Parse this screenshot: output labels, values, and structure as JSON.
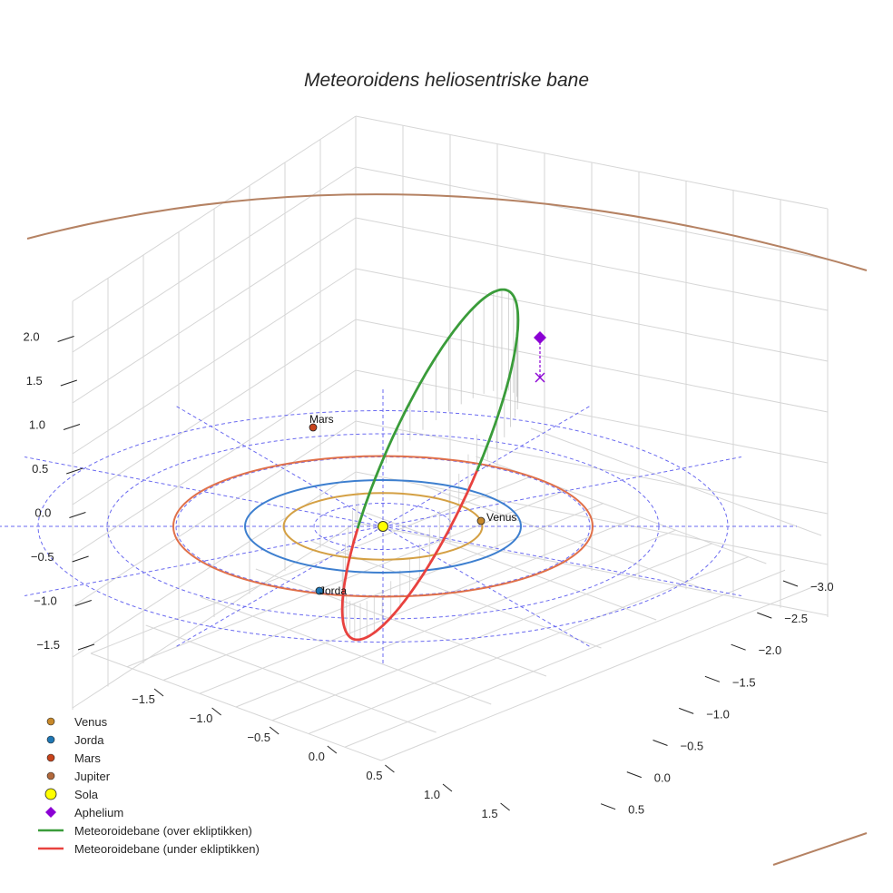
{
  "chart_data": {
    "type": "line3d",
    "title": "Meteoroidens heliosentriske bane",
    "axes": {
      "z_ticks": [
        -1.5,
        -1.0,
        -0.5,
        0.0,
        0.5,
        1.0,
        1.5,
        2.0
      ],
      "left_ticks": [
        -1.5,
        -1.0,
        -0.5,
        0.0,
        0.5,
        1.0,
        1.5
      ],
      "right_ticks": [
        -3.0,
        -2.5,
        -2.0,
        -1.5,
        -1.0,
        -0.5,
        0.0,
        0.5
      ]
    },
    "planets": [
      {
        "name": "Venus",
        "a_au": 0.72,
        "color": "#d4a044",
        "marker_color": "#c8892a"
      },
      {
        "name": "Jorda",
        "a_au": 1.0,
        "color": "#3d7fcf",
        "marker_color": "#1f77b4"
      },
      {
        "name": "Mars",
        "a_au": 1.52,
        "color": "#e0704a",
        "marker_color": "#c8431b"
      },
      {
        "name": "Jupiter",
        "a_au": 5.2,
        "color": "#b58263",
        "marker_color": "#b2693c"
      }
    ],
    "sun": {
      "name": "Sola",
      "color": "#ffff00"
    },
    "aphelium": {
      "name": "Aphelium",
      "color": "#8b00d4"
    },
    "series": [
      {
        "name": "Meteoroidebane (over ekliptikken)",
        "color": "#3a9c3a"
      },
      {
        "name": "Meteoroidebane (under ekliptikken)",
        "color": "#e8423f"
      }
    ],
    "reference_circles_au": [
      0.5,
      1.0,
      1.5,
      2.0,
      2.5
    ],
    "legend_position": "bottom-left"
  }
}
